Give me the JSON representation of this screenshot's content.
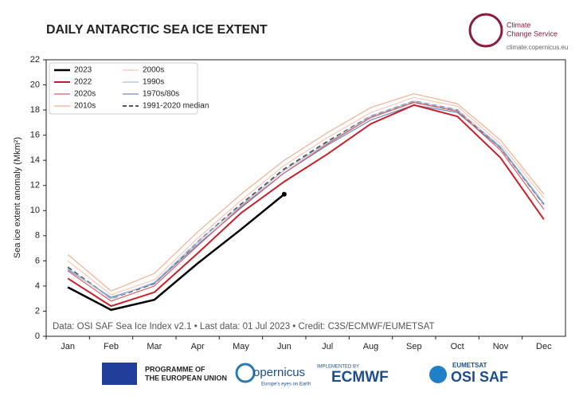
{
  "chart_data": {
    "type": "line",
    "title": "DAILY ANTARCTIC SEA ICE EXTENT",
    "y_label": "Sea ice extent anomaly (Mkm²)",
    "source": "Data: OSI SAF Sea Ice Index v2.1 • Last data: 01 Jul 2023 • Credit: C3S/ECMWF/EUMETSAT",
    "categories": [
      "Jan",
      "Feb",
      "Mar",
      "Apr",
      "May",
      "Jun",
      "Jul",
      "Aug",
      "Sep",
      "Oct",
      "Nov",
      "Dec"
    ],
    "ylim": [
      0,
      22
    ],
    "yticks": [
      0,
      2,
      4,
      6,
      8,
      10,
      12,
      14,
      16,
      18,
      20,
      22
    ],
    "grid": false,
    "legend": "upper-left",
    "series": [
      {
        "name": "2023",
        "color": "#000000",
        "values": [
          3.9,
          2.1,
          2.9,
          5.8,
          8.5,
          11.3,
          null,
          null,
          null,
          null,
          null,
          null
        ]
      },
      {
        "name": "2022",
        "color": "#c8202a",
        "values": [
          4.6,
          2.4,
          3.5,
          6.6,
          9.8,
          12.3,
          14.5,
          16.9,
          18.4,
          17.5,
          14.2,
          9.3
        ]
      },
      {
        "name": "2020s",
        "color": "#d86060",
        "values": [
          5.2,
          2.8,
          4.0,
          7.2,
          10.3,
          13.0,
          15.3,
          17.4,
          18.6,
          17.9,
          14.8,
          10.1
        ]
      },
      {
        "name": "2010s",
        "color": "#f0b090",
        "values": [
          6.5,
          3.6,
          5.0,
          8.3,
          11.3,
          14.0,
          16.2,
          18.2,
          19.3,
          18.5,
          15.6,
          11.3
        ]
      },
      {
        "name": "2000s",
        "color": "#f5c8b5",
        "values": [
          6.0,
          3.3,
          4.5,
          7.8,
          10.8,
          13.6,
          15.8,
          17.8,
          19.0,
          18.3,
          15.3,
          11.0
        ]
      },
      {
        "name": "1990s",
        "color": "#a8c0e0",
        "values": [
          5.4,
          3.0,
          4.3,
          7.5,
          10.4,
          13.2,
          15.4,
          17.5,
          18.7,
          18.0,
          15.1,
          10.6
        ]
      },
      {
        "name": "1970s/80s",
        "color": "#6a8fc8",
        "values": [
          5.3,
          3.1,
          4.2,
          7.3,
          10.2,
          13.0,
          15.2,
          17.2,
          18.4,
          17.8,
          15.0,
          10.5
        ]
      },
      {
        "name": "1991-2020 median",
        "color": "#555555",
        "dashed": true,
        "values": [
          5.5,
          3.0,
          4.2,
          7.5,
          10.5,
          13.3,
          15.5,
          17.5,
          18.7,
          18.0,
          15.0,
          10.5
        ]
      }
    ]
  },
  "branding": {
    "service": [
      "Climate",
      "Change Service"
    ],
    "url": "climate.copernicus.eu",
    "eu": [
      "PROGRAMME OF",
      "THE EUROPEAN UNION"
    ],
    "copernicus": "opernicus",
    "copernicus_tag": "Europe's eyes on Earth",
    "ecmwf_tag": "IMPLEMENTED BY",
    "ecmwf": "ECMWF",
    "eumetsat": "EUMETSAT",
    "osisaf": "OSI SAF"
  }
}
